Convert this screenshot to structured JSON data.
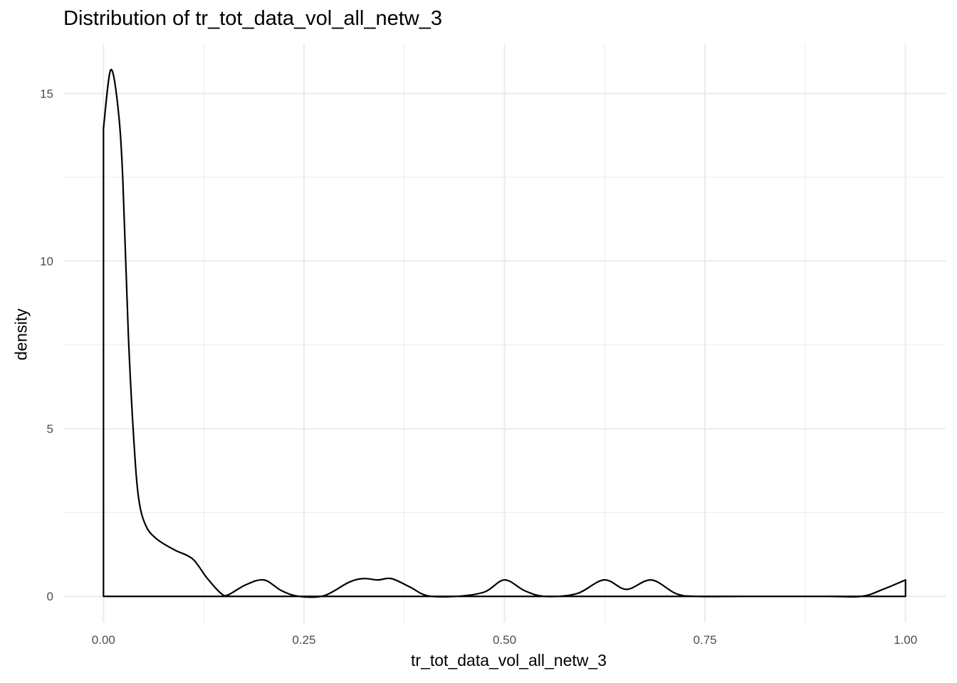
{
  "chart_data": {
    "type": "line",
    "subtype": "density",
    "title": "Distribution of tr_tot_data_vol_all_netw_3",
    "xlabel": "tr_tot_data_vol_all_netw_3",
    "ylabel": "density",
    "xlim": [
      -0.05,
      1.05
    ],
    "ylim": [
      -0.78,
      16.47
    ],
    "xticks": [
      0,
      0.25,
      0.5,
      0.75,
      1
    ],
    "xtick_labels": [
      "0.00",
      "0.25",
      "0.50",
      "0.75",
      "1.00"
    ],
    "yticks": [
      0,
      5,
      10,
      15
    ],
    "ytick_labels": [
      "0",
      "5",
      "10",
      "15"
    ],
    "grid": true,
    "line_color": "#000000",
    "grid_color": "#ebebeb",
    "series": [
      {
        "x": [
          0,
          0.009,
          0.018,
          0.024,
          0.031,
          0.038,
          0.044,
          0.053,
          0.067,
          0.089,
          0.111,
          0.129,
          0.146,
          0.155,
          0.177,
          0.2,
          0.222,
          0.244,
          0.275,
          0.306,
          0.324,
          0.342,
          0.359,
          0.382,
          0.404,
          0.44,
          0.475,
          0.5,
          0.525,
          0.55,
          0.59,
          0.624,
          0.652,
          0.683,
          0.714,
          0.74,
          0.8,
          0.9,
          0.945,
          0.972,
          1.0
        ],
        "y": [
          13.96,
          15.7,
          14.6,
          12.5,
          7.8,
          4.6,
          2.9,
          2.1,
          1.7,
          1.38,
          1.12,
          0.55,
          0.1,
          0.04,
          0.34,
          0.49,
          0.17,
          0.0,
          0.02,
          0.42,
          0.53,
          0.49,
          0.53,
          0.28,
          0.02,
          0.0,
          0.13,
          0.49,
          0.17,
          0.0,
          0.08,
          0.49,
          0.21,
          0.49,
          0.08,
          0.0,
          0.0,
          0.0,
          0.0,
          0.21,
          0.49
        ]
      }
    ]
  }
}
